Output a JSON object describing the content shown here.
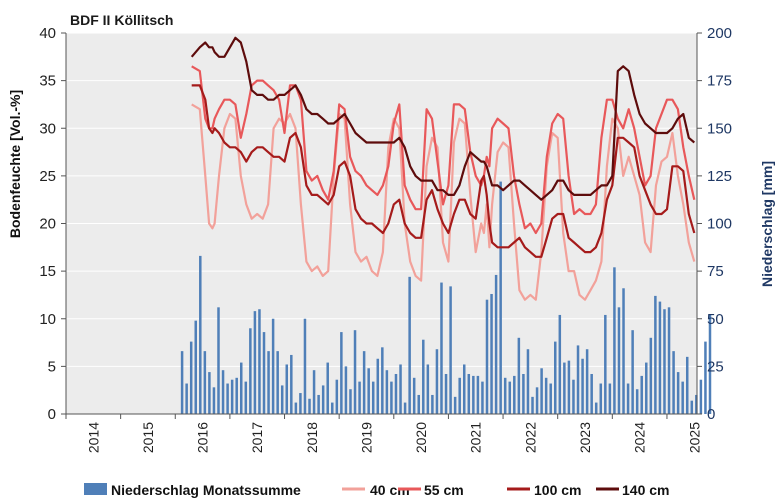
{
  "chart_data": {
    "type": "bar+line",
    "title": "BDF II Köllitsch",
    "ylabel_left": "Bodenfeuchte [Vol.-%]",
    "ylabel_right": "Niederschlag [mm]",
    "ylim_left": [
      0,
      40
    ],
    "ylim_right": [
      0,
      200
    ],
    "yticks_left": [
      "0",
      "5",
      "10",
      "15",
      "20",
      "25",
      "30",
      "35",
      "40"
    ],
    "yticks_right": [
      "0",
      "25",
      "50",
      "75",
      "100",
      "125",
      "150",
      "175",
      "200"
    ],
    "xlim": [
      2014.0,
      2025.55
    ],
    "xticks": [
      "2014",
      "2015",
      "2016",
      "2017",
      "2018",
      "2019",
      "2020",
      "2021",
      "2022",
      "2023",
      "2024",
      "2025"
    ],
    "grid": true,
    "colors": {
      "plot_bg": "#ececec",
      "bars": "#4f7fb8",
      "40 cm": "#f2a19a",
      "55 cm": "#e8585a",
      "100 cm": "#a51b1b",
      "140 cm": "#5e0c0c"
    },
    "bars": {
      "name": "Niederschlag Monatssumme",
      "start": 2016.125,
      "step": 0.0833,
      "values": [
        33,
        16,
        38,
        49,
        83,
        33,
        22,
        14,
        56,
        23,
        16,
        18,
        19,
        27,
        17,
        45,
        54,
        55,
        43,
        33,
        50,
        33,
        15,
        26,
        31,
        6,
        11,
        50,
        8,
        23,
        10,
        15,
        27,
        6,
        18,
        43,
        25,
        13,
        44,
        17,
        33,
        24,
        17,
        29,
        35,
        23,
        17,
        21,
        26,
        6,
        72,
        19,
        10,
        39,
        26,
        10,
        34,
        69,
        21,
        67,
        9,
        19,
        26,
        21,
        20,
        20,
        17,
        60,
        63,
        73,
        122,
        19,
        17,
        20,
        40,
        21,
        34,
        9,
        14,
        24,
        19,
        16,
        38,
        52,
        27,
        28,
        18,
        36,
        29,
        34,
        21,
        6,
        16,
        52,
        16,
        77,
        56,
        66,
        16,
        44,
        13,
        20,
        27,
        40,
        62,
        59,
        55,
        56,
        33,
        22,
        17,
        30,
        7,
        10,
        18,
        38,
        52
      ]
    },
    "series": [
      {
        "name": "40 cm",
        "x": [
          2016.3,
          2016.45,
          2016.55,
          2016.62,
          2016.68,
          2016.72,
          2016.8,
          2016.9,
          2017.0,
          2017.1,
          2017.2,
          2017.3,
          2017.4,
          2017.5,
          2017.6,
          2017.7,
          2017.8,
          2017.9,
          2018.0,
          2018.1,
          2018.2,
          2018.3,
          2018.4,
          2018.5,
          2018.6,
          2018.7,
          2018.8,
          2018.9,
          2019.0,
          2019.1,
          2019.2,
          2019.3,
          2019.4,
          2019.5,
          2019.6,
          2019.7,
          2019.8,
          2019.9,
          2020.0,
          2020.1,
          2020.2,
          2020.3,
          2020.4,
          2020.5,
          2020.6,
          2020.7,
          2020.8,
          2020.9,
          2021.0,
          2021.1,
          2021.2,
          2021.3,
          2021.4,
          2021.5,
          2021.6,
          2021.65,
          2021.7,
          2021.75,
          2021.8,
          2021.9,
          2022.0,
          2022.1,
          2022.2,
          2022.3,
          2022.4,
          2022.5,
          2022.6,
          2022.7,
          2022.8,
          2022.9,
          2023.0,
          2023.1,
          2023.2,
          2023.3,
          2023.4,
          2023.5,
          2023.6,
          2023.7,
          2023.8,
          2023.9,
          2024.0,
          2024.1,
          2024.2,
          2024.3,
          2024.4,
          2024.5,
          2024.6,
          2024.7,
          2024.8,
          2024.9,
          2025.0,
          2025.1,
          2025.2,
          2025.3,
          2025.4,
          2025.5
        ],
        "values": [
          32.5,
          32.0,
          25.0,
          20.0,
          19.5,
          20.0,
          25.0,
          30.0,
          31.5,
          31.0,
          25.0,
          22.0,
          20.5,
          21.0,
          20.5,
          22.0,
          30.0,
          31.0,
          30.5,
          31.5,
          30.0,
          22.0,
          16.0,
          15.0,
          15.5,
          14.5,
          15.0,
          25.0,
          31.5,
          31.0,
          22.0,
          17.0,
          16.0,
          16.5,
          15.0,
          14.5,
          17.0,
          28.0,
          31.0,
          30.0,
          20.0,
          16.0,
          14.5,
          14.0,
          26.0,
          29.0,
          28.0,
          18.0,
          16.0,
          28.5,
          31.0,
          30.5,
          23.0,
          17.0,
          20.0,
          19.0,
          22.0,
          17.5,
          22.0,
          27.5,
          28.5,
          28.0,
          20.0,
          13.0,
          12.0,
          12.5,
          12.0,
          17.0,
          26.0,
          29.5,
          29.0,
          19.0,
          15.0,
          15.0,
          12.5,
          12.0,
          13.0,
          14.0,
          16.0,
          26.0,
          31.0,
          30.0,
          25.0,
          27.0,
          25.0,
          23.0,
          18.0,
          17.0,
          24.0,
          26.5,
          27.0,
          29.5,
          25.0,
          22.0,
          18.0,
          16.0
        ]
      },
      {
        "name": "55 cm",
        "x": [
          2016.3,
          2016.45,
          2016.55,
          2016.62,
          2016.68,
          2016.72,
          2016.8,
          2016.9,
          2017.0,
          2017.1,
          2017.2,
          2017.3,
          2017.4,
          2017.5,
          2017.6,
          2017.7,
          2017.8,
          2017.9,
          2018.0,
          2018.1,
          2018.2,
          2018.3,
          2018.4,
          2018.5,
          2018.6,
          2018.7,
          2018.8,
          2018.9,
          2019.0,
          2019.1,
          2019.2,
          2019.3,
          2019.4,
          2019.5,
          2019.6,
          2019.7,
          2019.8,
          2019.9,
          2020.0,
          2020.1,
          2020.2,
          2020.3,
          2020.4,
          2020.5,
          2020.6,
          2020.7,
          2020.8,
          2020.9,
          2021.0,
          2021.1,
          2021.2,
          2021.3,
          2021.4,
          2021.5,
          2021.6,
          2021.65,
          2021.7,
          2021.75,
          2021.8,
          2021.9,
          2022.0,
          2022.1,
          2022.2,
          2022.3,
          2022.4,
          2022.5,
          2022.6,
          2022.7,
          2022.8,
          2022.9,
          2023.0,
          2023.1,
          2023.2,
          2023.3,
          2023.4,
          2023.5,
          2023.6,
          2023.7,
          2023.8,
          2023.9,
          2024.0,
          2024.1,
          2024.2,
          2024.3,
          2024.4,
          2024.5,
          2024.6,
          2024.7,
          2024.8,
          2024.9,
          2025.0,
          2025.1,
          2025.2,
          2025.3,
          2025.4,
          2025.5
        ],
        "values": [
          36.5,
          36.0,
          31.0,
          30.0,
          30.0,
          31.0,
          32.0,
          33.0,
          33.0,
          32.5,
          29.0,
          31.5,
          34.5,
          35.0,
          35.0,
          34.5,
          34.0,
          33.0,
          29.5,
          34.5,
          34.5,
          33.0,
          25.5,
          24.5,
          25.0,
          23.5,
          22.5,
          25.5,
          32.5,
          32.0,
          27.0,
          25.5,
          25.0,
          24.0,
          23.5,
          23.0,
          24.0,
          26.0,
          30.5,
          32.5,
          24.0,
          22.5,
          21.5,
          21.5,
          32.0,
          31.0,
          26.5,
          22.0,
          24.0,
          32.5,
          32.5,
          32.0,
          27.5,
          25.0,
          24.0,
          25.0,
          27.0,
          26.0,
          30.0,
          31.0,
          30.5,
          30.0,
          25.0,
          22.0,
          19.5,
          20.0,
          19.0,
          20.0,
          27.0,
          30.5,
          31.5,
          31.0,
          25.0,
          21.0,
          21.5,
          21.0,
          21.0,
          22.0,
          29.0,
          33.0,
          33.0,
          31.0,
          30.0,
          32.0,
          30.0,
          27.0,
          24.0,
          25.0,
          30.0,
          31.5,
          33.0,
          33.0,
          32.0,
          28.0,
          25.0,
          22.5
        ]
      },
      {
        "name": "100 cm",
        "x": [
          2016.3,
          2016.45,
          2016.55,
          2016.62,
          2016.68,
          2016.72,
          2016.8,
          2016.9,
          2017.0,
          2017.1,
          2017.2,
          2017.3,
          2017.4,
          2017.5,
          2017.6,
          2017.7,
          2017.8,
          2017.9,
          2018.0,
          2018.1,
          2018.2,
          2018.3,
          2018.4,
          2018.5,
          2018.6,
          2018.7,
          2018.8,
          2018.9,
          2019.0,
          2019.1,
          2019.2,
          2019.3,
          2019.4,
          2019.5,
          2019.6,
          2019.7,
          2019.8,
          2019.9,
          2020.0,
          2020.1,
          2020.2,
          2020.3,
          2020.4,
          2020.5,
          2020.6,
          2020.7,
          2020.8,
          2020.9,
          2021.0,
          2021.1,
          2021.2,
          2021.3,
          2021.4,
          2021.5,
          2021.6,
          2021.65,
          2021.7,
          2021.75,
          2021.8,
          2021.9,
          2022.0,
          2022.1,
          2022.2,
          2022.3,
          2022.4,
          2022.5,
          2022.6,
          2022.7,
          2022.8,
          2022.9,
          2023.0,
          2023.1,
          2023.2,
          2023.3,
          2023.4,
          2023.5,
          2023.6,
          2023.7,
          2023.8,
          2023.9,
          2024.0,
          2024.1,
          2024.2,
          2024.3,
          2024.4,
          2024.5,
          2024.6,
          2024.7,
          2024.8,
          2024.9,
          2025.0,
          2025.1,
          2025.2,
          2025.3,
          2025.4,
          2025.5
        ],
        "values": [
          34.5,
          34.5,
          33.0,
          30.0,
          29.5,
          30.0,
          29.5,
          28.5,
          28.0,
          28.0,
          27.5,
          26.5,
          27.5,
          28.0,
          28.0,
          27.5,
          27.0,
          27.0,
          26.5,
          29.0,
          29.5,
          28.0,
          24.0,
          23.0,
          23.0,
          22.5,
          22.0,
          23.0,
          26.0,
          26.5,
          25.0,
          21.5,
          20.5,
          20.0,
          20.0,
          19.5,
          19.0,
          20.0,
          22.0,
          22.5,
          20.0,
          19.0,
          18.5,
          18.5,
          22.5,
          23.5,
          21.5,
          20.0,
          19.0,
          21.0,
          22.5,
          22.5,
          21.0,
          20.5,
          24.5,
          25.0,
          23.0,
          20.0,
          18.0,
          17.5,
          17.5,
          17.5,
          18.0,
          18.5,
          17.5,
          17.0,
          16.5,
          16.5,
          18.5,
          20.5,
          21.0,
          21.0,
          18.5,
          18.0,
          17.5,
          17.0,
          17.0,
          17.5,
          19.0,
          22.5,
          24.0,
          29.0,
          29.0,
          28.5,
          28.0,
          25.0,
          23.5,
          22.0,
          21.0,
          21.0,
          21.5,
          26.0,
          26.0,
          25.5,
          21.0,
          19.0
        ]
      },
      {
        "name": "140 cm",
        "x": [
          2016.3,
          2016.45,
          2016.55,
          2016.62,
          2016.68,
          2016.72,
          2016.8,
          2016.9,
          2017.0,
          2017.1,
          2017.2,
          2017.3,
          2017.4,
          2017.5,
          2017.6,
          2017.7,
          2017.8,
          2017.9,
          2018.0,
          2018.1,
          2018.2,
          2018.3,
          2018.4,
          2018.5,
          2018.6,
          2018.7,
          2018.8,
          2018.9,
          2019.0,
          2019.1,
          2019.2,
          2019.3,
          2019.4,
          2019.5,
          2019.6,
          2019.7,
          2019.8,
          2019.9,
          2020.0,
          2020.1,
          2020.2,
          2020.3,
          2020.4,
          2020.5,
          2020.6,
          2020.7,
          2020.8,
          2020.9,
          2021.0,
          2021.1,
          2021.2,
          2021.3,
          2021.4,
          2021.5,
          2021.6,
          2021.65,
          2021.7,
          2021.75,
          2021.8,
          2021.9,
          2022.0,
          2022.1,
          2022.2,
          2022.3,
          2022.4,
          2022.5,
          2022.6,
          2022.7,
          2022.8,
          2022.9,
          2023.0,
          2023.1,
          2023.2,
          2023.3,
          2023.4,
          2023.5,
          2023.6,
          2023.7,
          2023.8,
          2023.9,
          2024.0,
          2024.1,
          2024.2,
          2024.3,
          2024.4,
          2024.5,
          2024.6,
          2024.7,
          2024.8,
          2024.9,
          2025.0,
          2025.1,
          2025.2,
          2025.3,
          2025.4,
          2025.5
        ],
        "values": [
          37.5,
          38.5,
          39.0,
          38.5,
          38.5,
          38.0,
          37.5,
          37.5,
          38.5,
          39.5,
          39.0,
          37.0,
          34.0,
          33.5,
          33.5,
          33.0,
          33.0,
          33.5,
          33.5,
          34.0,
          34.5,
          33.5,
          32.0,
          31.5,
          31.5,
          31.0,
          30.5,
          30.5,
          31.0,
          31.5,
          30.5,
          29.5,
          29.0,
          28.5,
          28.5,
          28.5,
          28.5,
          28.5,
          28.5,
          29.0,
          28.0,
          26.0,
          25.0,
          24.5,
          24.5,
          24.5,
          23.5,
          23.5,
          23.0,
          23.0,
          24.0,
          26.0,
          27.5,
          27.0,
          26.5,
          26.5,
          26.0,
          25.0,
          24.0,
          24.0,
          23.5,
          24.0,
          24.5,
          24.5,
          24.0,
          23.5,
          23.0,
          22.5,
          23.0,
          23.5,
          24.5,
          24.5,
          23.5,
          23.0,
          23.0,
          23.0,
          23.0,
          23.5,
          24.0,
          24.0,
          25.0,
          36.0,
          36.5,
          36.0,
          33.5,
          31.5,
          30.5,
          30.0,
          29.5,
          29.5,
          29.5,
          30.0,
          31.0,
          31.5,
          29.0,
          28.5
        ]
      }
    ],
    "legend": [
      "Niederschlag Monatssumme",
      "40 cm",
      "55 cm",
      "100 cm",
      "140 cm"
    ],
    "legend_position": "bottom"
  }
}
